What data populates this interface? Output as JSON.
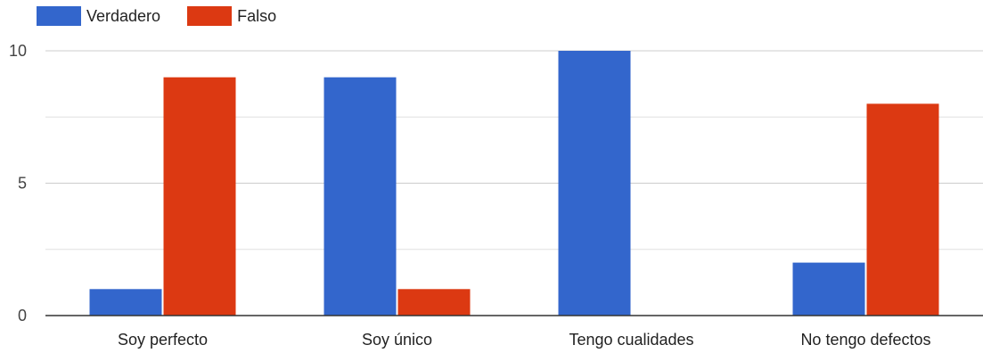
{
  "chart_data": {
    "type": "bar",
    "categories": [
      "Soy perfecto",
      "Soy único",
      "Tengo cualidades",
      "No tengo defectos"
    ],
    "series": [
      {
        "name": "Verdadero",
        "color": "#3366cc",
        "values": [
          1,
          9,
          10,
          2
        ]
      },
      {
        "name": "Falso",
        "color": "#dc3912",
        "values": [
          9,
          1,
          0,
          8
        ]
      }
    ],
    "ylim": [
      0,
      10
    ],
    "yticks": [
      "0",
      "5",
      "10"
    ],
    "grid": true,
    "legend": "top-left"
  }
}
